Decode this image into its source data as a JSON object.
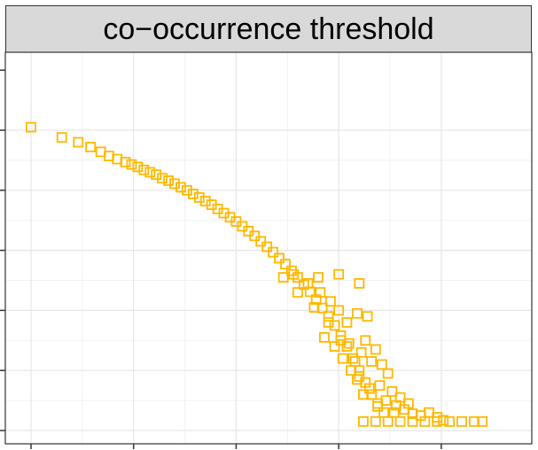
{
  "strip": {
    "label": "co−occurrence threshold"
  },
  "colors": {
    "marker": "#FFB800",
    "panel_border": "#333333",
    "strip_fill": "#d9d9d9",
    "grid_major": "#e6e6e6",
    "grid_minor": "#f2f2f2"
  },
  "chart_data": {
    "type": "scatter",
    "facet_label": "co−occurrence threshold",
    "marker": "hollow-square",
    "xlabel": "",
    "ylabel": "",
    "x_tick_labels_visible": false,
    "y_tick_labels_visible": false,
    "xlim": [
      0,
      23
    ],
    "ylim": [
      0,
      5.1
    ],
    "x_ticks": [
      1,
      6,
      11,
      16,
      21
    ],
    "y_ticks": [
      0,
      1,
      2,
      3,
      4,
      5
    ],
    "grid": true,
    "description_of_trend": "decreasing, steepening toward higher x, floor at y≈0.15 from x≈17 to 23",
    "points": [
      [
        1.0,
        5.05
      ],
      [
        2.5,
        4.88
      ],
      [
        3.3,
        4.8
      ],
      [
        3.9,
        4.72
      ],
      [
        4.4,
        4.64
      ],
      [
        4.8,
        4.57
      ],
      [
        5.2,
        4.52
      ],
      [
        5.6,
        4.47
      ],
      [
        5.9,
        4.43
      ],
      [
        6.2,
        4.39
      ],
      [
        6.5,
        4.34
      ],
      [
        6.8,
        4.3
      ],
      [
        7.1,
        4.26
      ],
      [
        7.4,
        4.2
      ],
      [
        7.7,
        4.16
      ],
      [
        8.0,
        4.11
      ],
      [
        8.3,
        4.05
      ],
      [
        8.6,
        4.0
      ],
      [
        8.9,
        3.94
      ],
      [
        9.2,
        3.88
      ],
      [
        9.5,
        3.82
      ],
      [
        9.8,
        3.76
      ],
      [
        10.1,
        3.69
      ],
      [
        10.4,
        3.62
      ],
      [
        10.7,
        3.55
      ],
      [
        11.0,
        3.48
      ],
      [
        11.3,
        3.4
      ],
      [
        11.6,
        3.32
      ],
      [
        11.9,
        3.24
      ],
      [
        12.2,
        3.15
      ],
      [
        12.5,
        3.06
      ],
      [
        12.8,
        2.97
      ],
      [
        13.1,
        2.87
      ],
      [
        13.4,
        2.77
      ],
      [
        13.7,
        2.66
      ],
      [
        14.0,
        2.55
      ],
      [
        14.3,
        2.43
      ],
      [
        14.6,
        2.31
      ],
      [
        14.9,
        2.18
      ],
      [
        15.2,
        2.04
      ],
      [
        15.5,
        1.9
      ],
      [
        15.8,
        1.75
      ],
      [
        16.1,
        1.58
      ],
      [
        16.4,
        1.4
      ],
      [
        16.7,
        1.2
      ],
      [
        17.0,
        1.0
      ],
      [
        17.3,
        0.8
      ],
      [
        17.6,
        0.6
      ],
      [
        17.9,
        0.4
      ],
      [
        13.8,
        2.6
      ],
      [
        14.5,
        2.45
      ],
      [
        15.1,
        2.3
      ],
      [
        15.6,
        2.15
      ],
      [
        16.0,
        2.0
      ],
      [
        16.4,
        1.8
      ],
      [
        15.3,
        1.55
      ],
      [
        15.8,
        1.4
      ],
      [
        16.2,
        1.2
      ],
      [
        16.6,
        1.0
      ],
      [
        16.9,
        0.85
      ],
      [
        17.2,
        0.6
      ],
      [
        13.3,
        2.55
      ],
      [
        14.0,
        2.3
      ],
      [
        14.8,
        2.05
      ],
      [
        15.5,
        1.8
      ],
      [
        16.1,
        1.5
      ],
      [
        16.8,
        1.15
      ],
      [
        15.0,
        2.55
      ],
      [
        16.0,
        2.6
      ],
      [
        17.0,
        2.45
      ],
      [
        16.9,
        1.95
      ],
      [
        17.4,
        1.9
      ],
      [
        17.3,
        1.5
      ],
      [
        17.8,
        1.35
      ],
      [
        18.1,
        1.1
      ],
      [
        18.4,
        0.95
      ],
      [
        18.0,
        0.75
      ],
      [
        18.6,
        0.65
      ],
      [
        19.0,
        0.55
      ],
      [
        17.6,
        1.15
      ],
      [
        17.1,
        1.3
      ],
      [
        16.5,
        1.45
      ],
      [
        17.9,
        0.45
      ],
      [
        18.3,
        0.5
      ],
      [
        18.8,
        0.42
      ],
      [
        19.2,
        0.35
      ],
      [
        19.6,
        0.28
      ],
      [
        20.0,
        0.25
      ],
      [
        20.4,
        0.3
      ],
      [
        20.8,
        0.22
      ],
      [
        21.1,
        0.17
      ],
      [
        17.0,
        0.9
      ],
      [
        17.5,
        0.7
      ],
      [
        18.2,
        0.3
      ],
      [
        18.7,
        0.3
      ],
      [
        19.4,
        0.45
      ],
      [
        17.2,
        0.15
      ],
      [
        17.8,
        0.15
      ],
      [
        18.4,
        0.15
      ],
      [
        19.0,
        0.15
      ],
      [
        19.6,
        0.15
      ],
      [
        20.2,
        0.15
      ],
      [
        20.8,
        0.15
      ],
      [
        21.4,
        0.15
      ],
      [
        22.0,
        0.15
      ],
      [
        22.6,
        0.15
      ],
      [
        23.0,
        0.15
      ]
    ]
  }
}
